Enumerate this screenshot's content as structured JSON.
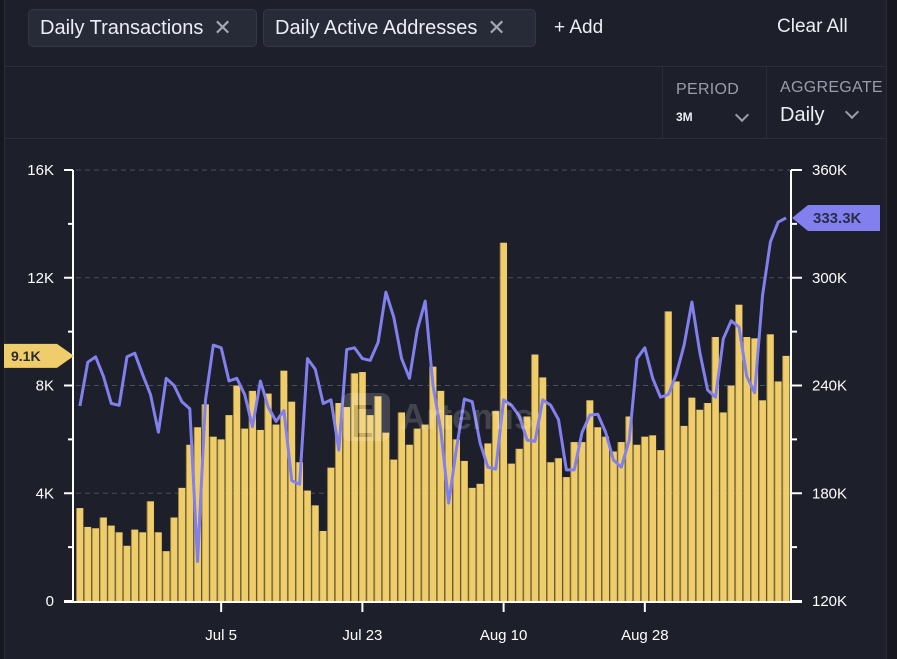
{
  "header": {
    "chips": [
      {
        "label": "Daily Transactions",
        "remove_icon": "close-icon"
      },
      {
        "label": "Daily Active Addresses",
        "remove_icon": "close-icon"
      }
    ],
    "add_label": "+ Add",
    "clear_label": "Clear All"
  },
  "controls": {
    "period": {
      "label": "PERIOD",
      "value": "3M"
    },
    "aggregate": {
      "label": "AGGREGATE",
      "value": "Daily"
    }
  },
  "watermark": "Artemis",
  "colors": {
    "bars": "#f0cd6b",
    "line": "#8180ee",
    "background": "#1d1f2a"
  },
  "chart_data": {
    "type": "bar+line",
    "title": "",
    "x_tick_labels": [
      "Jul 5",
      "Jul 23",
      "Aug 10",
      "Aug 28"
    ],
    "x_tick_indices": [
      18,
      36,
      54,
      72
    ],
    "left_axis": {
      "ticks": [
        "0",
        "4K",
        "8K",
        "12K",
        "16K"
      ],
      "range": [
        0,
        16000
      ],
      "minor_step": 2000
    },
    "right_axis": {
      "ticks": [
        "120K",
        "180K",
        "240K",
        "300K",
        "360K"
      ],
      "range": [
        120000,
        360000
      ],
      "minor_step": 30000
    },
    "gridlines": "dashed",
    "series": [
      {
        "name": "Daily Transactions",
        "type": "bar",
        "axis": "left",
        "current_label": "9.1K",
        "values": [
          3450,
          2750,
          2700,
          3100,
          2800,
          2550,
          2050,
          2650,
          2550,
          3700,
          2550,
          1850,
          3100,
          4200,
          5800,
          6450,
          7300,
          6100,
          6000,
          6900,
          8000,
          6400,
          7800,
          6350,
          7700,
          6550,
          8550,
          7400,
          5150,
          4100,
          3550,
          2600,
          4950,
          7350,
          7200,
          8450,
          8500,
          6900,
          7600,
          6250,
          5250,
          7000,
          5800,
          6400,
          6550,
          8700,
          7800,
          6900,
          6000,
          5200,
          4200,
          4350,
          5850,
          7050,
          13300,
          5100,
          5650,
          6850,
          9150,
          8300,
          5150,
          5300,
          4600,
          5900,
          5900,
          7450,
          6450,
          6100,
          5550,
          5900,
          6850,
          5800,
          6100,
          6150,
          5600,
          10750,
          8150,
          6500,
          7550,
          7100,
          7350,
          9800,
          7000,
          8000,
          11000,
          9800,
          9750,
          7450,
          9900,
          8150,
          9100
        ]
      },
      {
        "name": "Daily Active Addresses",
        "type": "line",
        "axis": "right",
        "current_label": "333.3K",
        "values": [
          228600,
          253000,
          256000,
          245000,
          230000,
          229000,
          256000,
          258000,
          246000,
          235000,
          214000,
          244000,
          240000,
          231000,
          227000,
          142000,
          232000,
          262500,
          261000,
          242500,
          244000,
          235000,
          217000,
          242500,
          228000,
          220000,
          226000,
          187000,
          185000,
          255000,
          249000,
          230000,
          232000,
          204000,
          260000,
          261000,
          255000,
          254000,
          264000,
          292000,
          278000,
          255000,
          244000,
          271000,
          287000,
          240000,
          215000,
          174500,
          205000,
          232500,
          231000,
          208000,
          194500,
          193500,
          232000,
          229000,
          223000,
          209500,
          209000,
          232000,
          229000,
          221000,
          193000,
          193000,
          214000,
          223500,
          224000,
          214000,
          198500,
          194500,
          209500,
          255000,
          261000,
          244000,
          233500,
          235000,
          246000,
          262500,
          286500,
          258500,
          237500,
          233500,
          266000,
          276000,
          272500,
          245000,
          236000,
          290000,
          320000,
          331000,
          333300
        ]
      }
    ]
  }
}
